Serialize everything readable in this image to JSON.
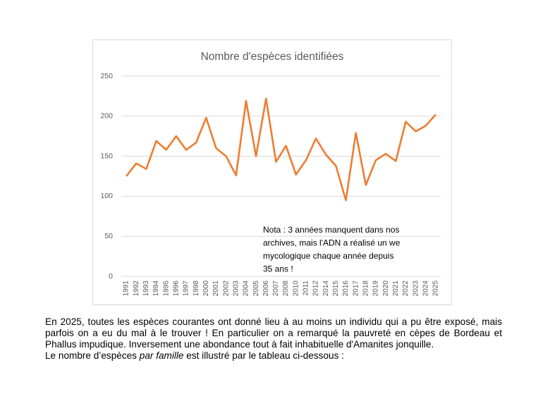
{
  "chart_data": {
    "type": "line",
    "title": "Nombre d'espèces identifiées",
    "categories": [
      "1991",
      "1992",
      "1993",
      "1994",
      "1995",
      "1996",
      "1997",
      "1998",
      "2000",
      "2001",
      "2002",
      "2003",
      "2004",
      "2005",
      "2006",
      "2007",
      "2008",
      "2010",
      "2011",
      "2012",
      "2014",
      "2015",
      "2016",
      "2017",
      "2018",
      "2019",
      "2020",
      "2021",
      "2022",
      "2023",
      "2024",
      "2025"
    ],
    "values": [
      125,
      141,
      134,
      169,
      158,
      175,
      158,
      167,
      198,
      160,
      150,
      126,
      219,
      150,
      222,
      143,
      163,
      127,
      145,
      172,
      152,
      138,
      95,
      179,
      114,
      145,
      153,
      144,
      193,
      181,
      188,
      202
    ],
    "color": "#ed7d31",
    "ylim": [
      0,
      250
    ],
    "yticks": [
      0,
      50,
      100,
      150,
      200,
      250
    ],
    "grid": true,
    "annotation": [
      "Nota : 3 années manquent dans nos",
      "archives, mais l'ADN a réalisé un we",
      "mycologique chaque année depuis",
      "35 ans !"
    ]
  },
  "body": {
    "paragraph": "En 2025, toutes les espèces courantes ont donné lieu à au moins un individu qui a pu être exposé, mais parfois on a eu du mal à le trouver ! En particulier on a remarqué la pauvreté en cèpes de Bordeau et Phallus impudique. Inversement une abondance tout à fait inhabituelle d'Amanites jonquille.",
    "last_line": [
      "Le nombre d’espèces ",
      "par famille",
      " est illustré par le tableau ci-dessous :"
    ]
  }
}
